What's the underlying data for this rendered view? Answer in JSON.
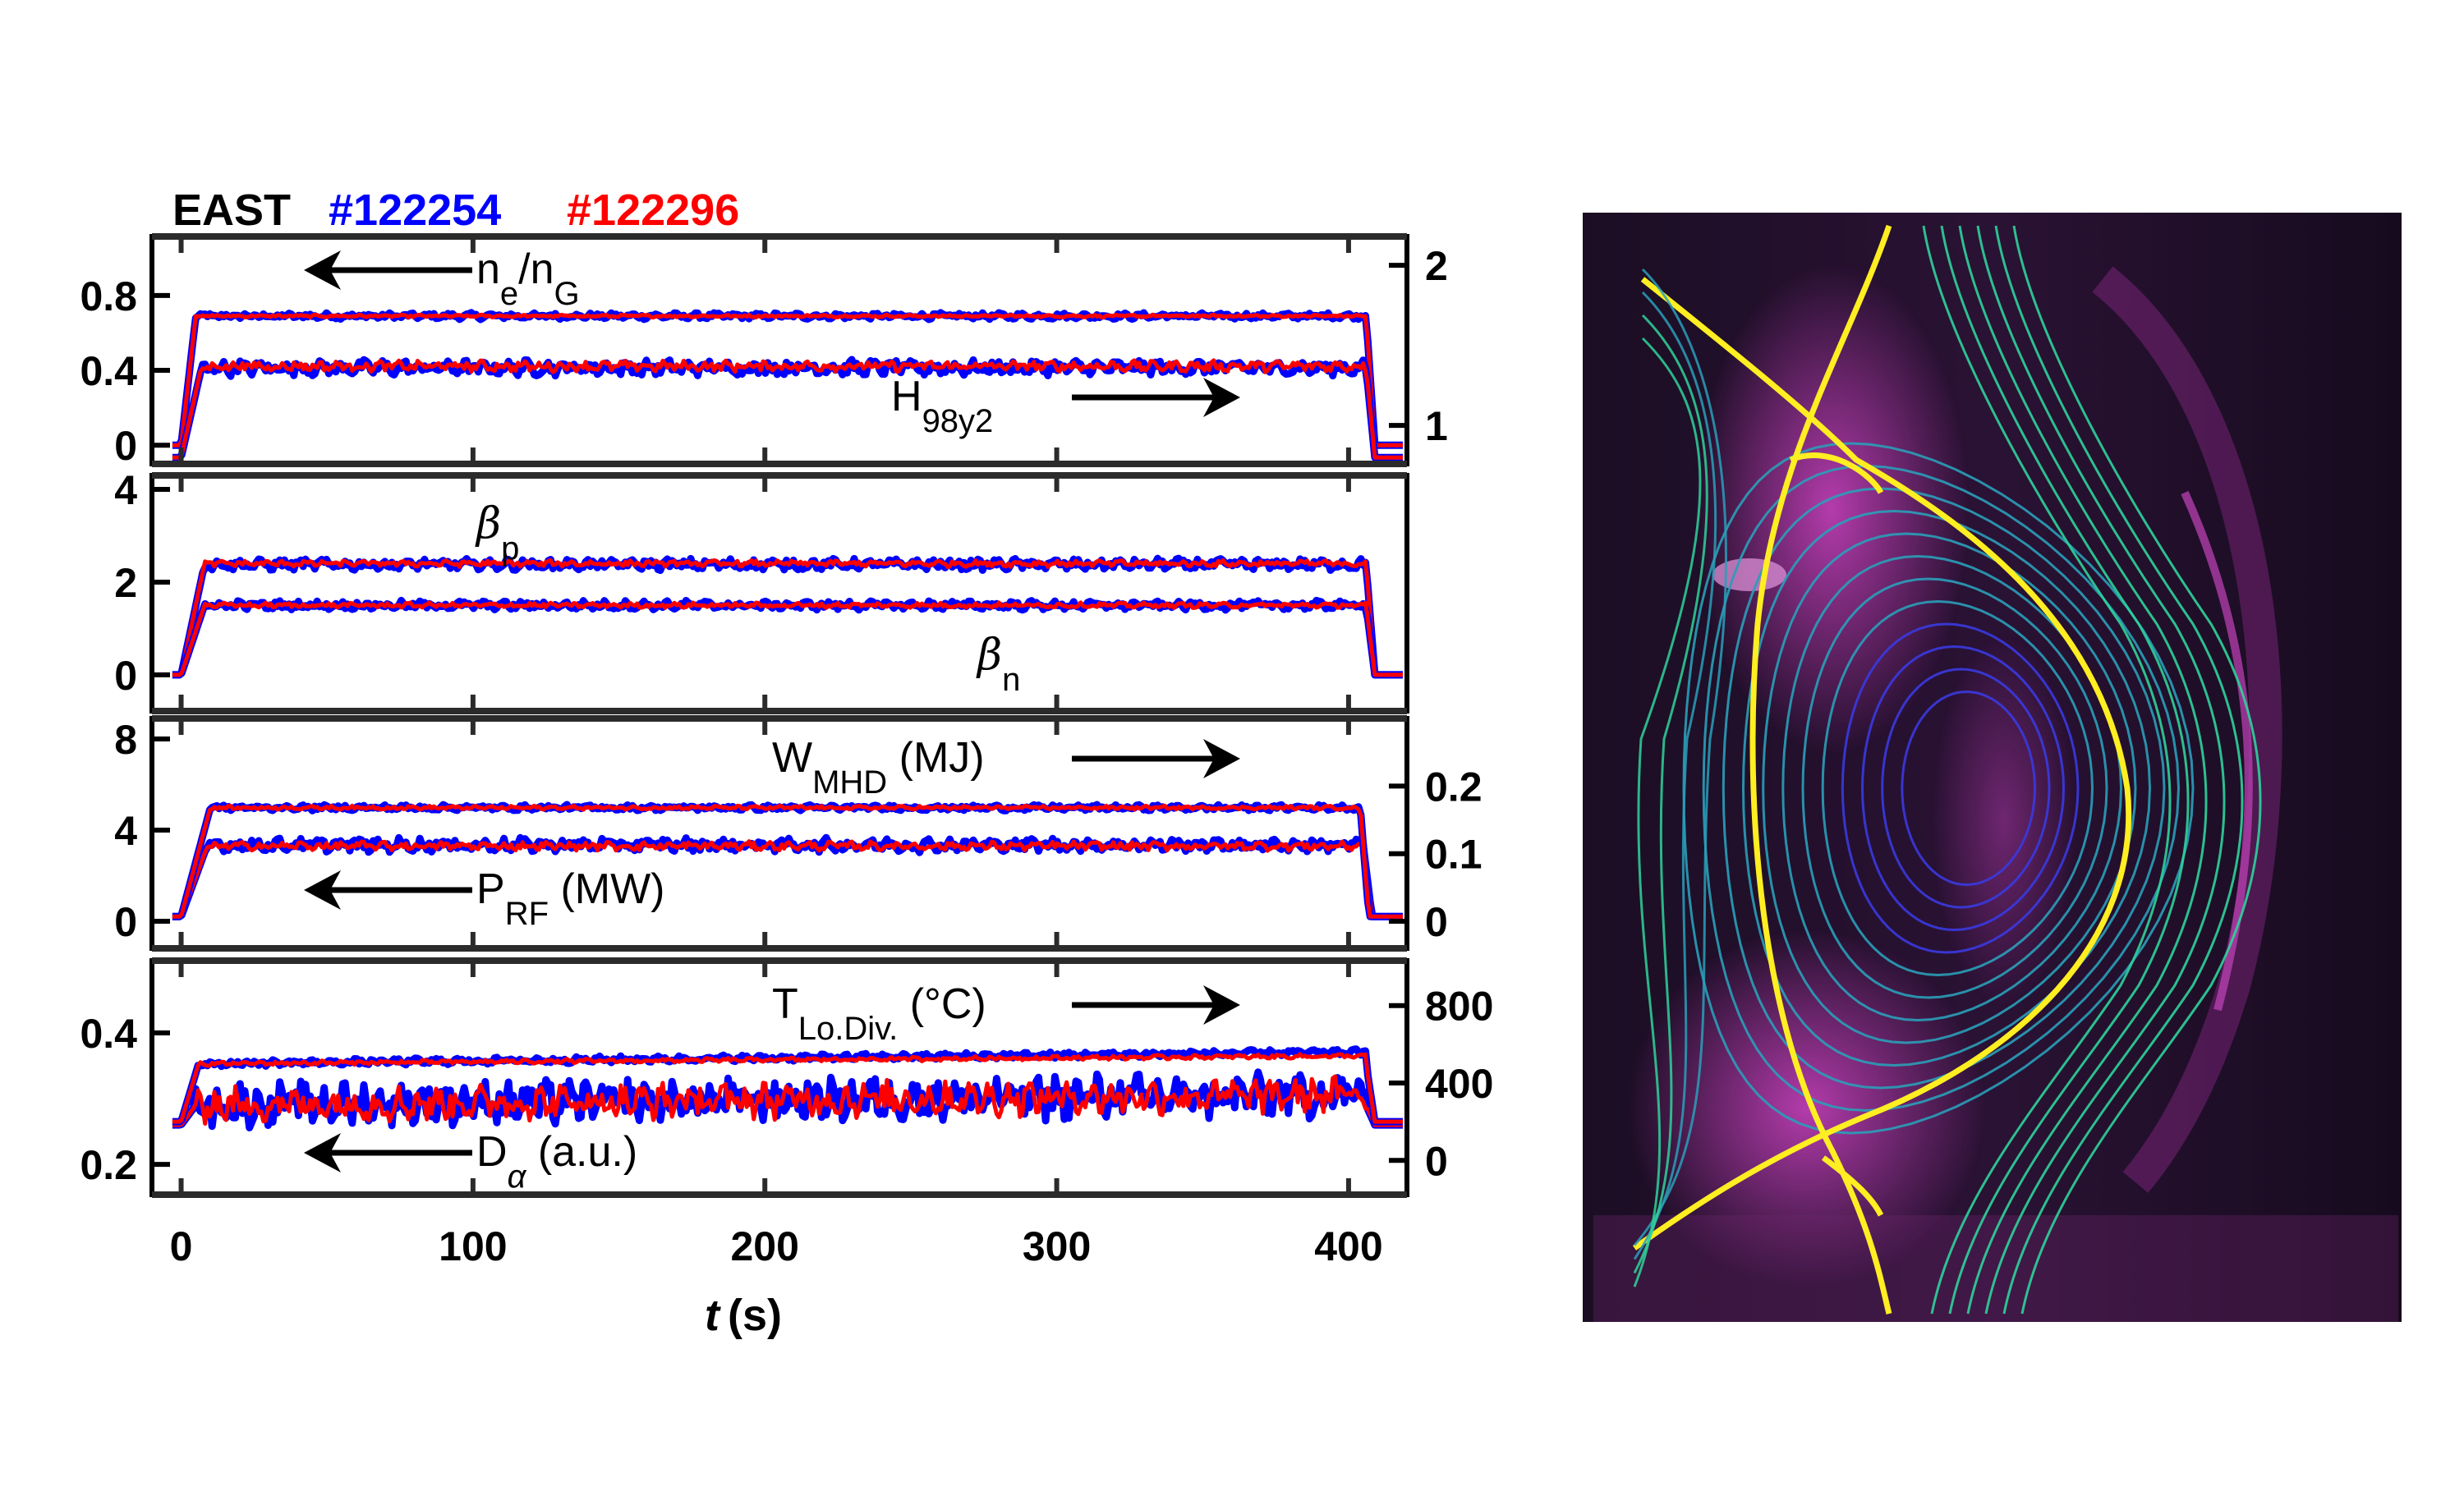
{
  "figure": {
    "title_parts": [
      {
        "text": "EAST",
        "color": "#000000"
      },
      {
        "text": "#122254",
        "color": "#0000ff"
      },
      {
        "text": "#122296",
        "color": "#ff0000"
      }
    ],
    "xlabel_italic": "t",
    "xlabel_unit": "(s)"
  },
  "photo": {
    "description": "EAST visible camera image of plasma with overlaid magnetic flux surfaces (yellow separatrix, blue-green contours)",
    "colors": {
      "background": "#1a0d22",
      "plasma_glow": "#d13bc4",
      "separatrix": "#ffee22",
      "flux_outer": "#2fd39a",
      "flux_mid": "#2a9fb8",
      "flux_inner": "#3a3ae0"
    }
  },
  "chart_data": [
    {
      "type": "line",
      "panel": 1,
      "x_range": [
        -10,
        420
      ],
      "ylim_left": [
        -0.1,
        1.115
      ],
      "ylim_right": [
        0.76,
        2.18
      ],
      "yticks_left": [
        "0",
        "0.4",
        "0.8"
      ],
      "yticks_left_values": [
        0,
        0.4,
        0.8
      ],
      "yticks_right": [
        "1",
        "2"
      ],
      "yticks_right_values": [
        1,
        2
      ],
      "annotations": [
        {
          "main": "n",
          "sub": "e",
          "tail": "/n",
          "sub2": "G",
          "arrow": "left",
          "axis": "left"
        },
        {
          "main": "H",
          "sub": "98y2",
          "arrow": "right",
          "axis": "right"
        }
      ],
      "series": [
        {
          "name": "n_e/n_G #122254",
          "axis": "left",
          "color": "#0000ff",
          "plateau": 0.69,
          "noise": 0.012,
          "t_start": 5,
          "t_end": 406,
          "pre": 0.0
        },
        {
          "name": "n_e/n_G #122296",
          "axis": "left",
          "color": "#ff0000",
          "plateau": 0.69,
          "noise": 0.005,
          "t_start": 5,
          "t_end": 406,
          "pre": 0.0
        },
        {
          "name": "H98y2 #122254",
          "axis": "right",
          "color": "#0000ff",
          "plateau": 1.36,
          "noise": 0.035,
          "t_start": 7,
          "t_end": 406,
          "pre": 0.8
        },
        {
          "name": "H98y2 #122296",
          "axis": "right",
          "color": "#ff0000",
          "plateau": 1.37,
          "noise": 0.025,
          "t_start": 7,
          "t_end": 406,
          "pre": 0.8
        }
      ]
    },
    {
      "type": "line",
      "panel": 2,
      "x_range": [
        -10,
        420
      ],
      "ylim_left": [
        -0.78,
        4.3
      ],
      "yticks_left": [
        "0",
        "2",
        "4"
      ],
      "yticks_left_values": [
        0,
        2,
        4
      ],
      "annotations": [
        {
          "main": "β",
          "sub": "p"
        },
        {
          "main": "β",
          "sub": "n"
        }
      ],
      "series": [
        {
          "name": "beta_p #122254",
          "axis": "left",
          "color": "#0000ff",
          "plateau": 2.38,
          "noise": 0.09,
          "t_start": 8,
          "t_end": 406,
          "pre": 0.0
        },
        {
          "name": "beta_p #122296",
          "axis": "left",
          "color": "#ff0000",
          "plateau": 2.4,
          "noise": 0.05,
          "t_start": 8,
          "t_end": 406,
          "pre": 0.0
        },
        {
          "name": "beta_n #122254",
          "axis": "left",
          "color": "#0000ff",
          "plateau": 1.5,
          "noise": 0.07,
          "t_start": 8,
          "t_end": 406,
          "pre": 0.0
        },
        {
          "name": "beta_n #122296",
          "axis": "left",
          "color": "#ff0000",
          "plateau": 1.5,
          "noise": 0.04,
          "t_start": 8,
          "t_end": 406,
          "pre": 0.0
        }
      ]
    },
    {
      "type": "line",
      "panel": 3,
      "x_range": [
        -10,
        420
      ],
      "ylim_left": [
        -1.19,
        8.9
      ],
      "ylim_right": [
        -0.04,
        0.3
      ],
      "yticks_left": [
        "0",
        "4",
        "8"
      ],
      "yticks_left_values": [
        0,
        4,
        8
      ],
      "yticks_right": [
        "0",
        "0.1",
        "0.2"
      ],
      "yticks_right_values": [
        0,
        0.1,
        0.2
      ],
      "annotations": [
        {
          "main": "W",
          "sub": "MHD",
          "tail": " (MJ)",
          "arrow": "right",
          "axis": "right"
        },
        {
          "main": "P",
          "sub": "RF",
          "tail": " (MW)",
          "arrow": "left",
          "axis": "left"
        }
      ],
      "series": [
        {
          "name": "P_RF #122254",
          "axis": "left",
          "color": "#0000ff",
          "plateau": 3.35,
          "noise": 0.22,
          "t_start": 9,
          "t_end": 405,
          "pre": 0.2
        },
        {
          "name": "P_RF #122296",
          "axis": "left",
          "color": "#ff0000",
          "plateau": 3.3,
          "noise": 0.14,
          "t_start": 9,
          "t_end": 405,
          "pre": 0.2
        },
        {
          "name": "W_MHD #122254",
          "axis": "right",
          "color": "#0000ff",
          "plateau": 0.168,
          "noise": 0.003,
          "t_start": 10,
          "t_end": 404,
          "pre": 0.007
        },
        {
          "name": "W_MHD #122296",
          "axis": "right",
          "color": "#ff0000",
          "plateau": 0.168,
          "noise": 0.002,
          "t_start": 10,
          "t_end": 404,
          "pre": 0.007
        }
      ]
    },
    {
      "type": "line",
      "panel": 4,
      "x_range": [
        -10,
        420
      ],
      "ylim_left": [
        0.154,
        0.51
      ],
      "ylim_right": [
        -177,
        1032
      ],
      "yticks_left": [
        "0.2",
        "0.4"
      ],
      "yticks_left_values": [
        0.2,
        0.4
      ],
      "yticks_right": [
        "0",
        "400",
        "800"
      ],
      "yticks_right_values": [
        0,
        400,
        800
      ],
      "annotations": [
        {
          "main": "T",
          "sub": "Lo.Div.",
          "tail": " (°C)",
          "arrow": "right",
          "axis": "right"
        },
        {
          "main": "D",
          "sub": "α",
          "tail": " (a.u.)",
          "arrow": "left",
          "axis": "left"
        }
      ],
      "series": [
        {
          "name": "D_alpha #122254",
          "axis": "left",
          "color": "#0000ff",
          "plateau": 0.29,
          "slope": 4e-05,
          "noise": 0.025,
          "t_start": 5,
          "t_end": 406,
          "pre": 0.26
        },
        {
          "name": "D_alpha #122296",
          "axis": "left",
          "color": "#ff0000",
          "plateau": 0.29,
          "slope": 4e-05,
          "noise": 0.02,
          "t_start": 5,
          "t_end": 406,
          "pre": 0.26
        },
        {
          "name": "T_div #122254",
          "axis": "right",
          "color": "#0000ff",
          "plateau": 500,
          "slope": 0.15,
          "noise": 12,
          "t_start": 6,
          "t_end": 406,
          "pre": 200
        },
        {
          "name": "T_div #122296",
          "axis": "right",
          "color": "#ff0000",
          "plateau": 500,
          "slope": 0.1,
          "noise": 8,
          "t_start": 6,
          "t_end": 406,
          "pre": 200
        }
      ]
    }
  ],
  "xaxis": {
    "ticks": [
      "0",
      "100",
      "200",
      "300",
      "400"
    ],
    "tick_values": [
      0,
      100,
      200,
      300,
      400
    ]
  }
}
